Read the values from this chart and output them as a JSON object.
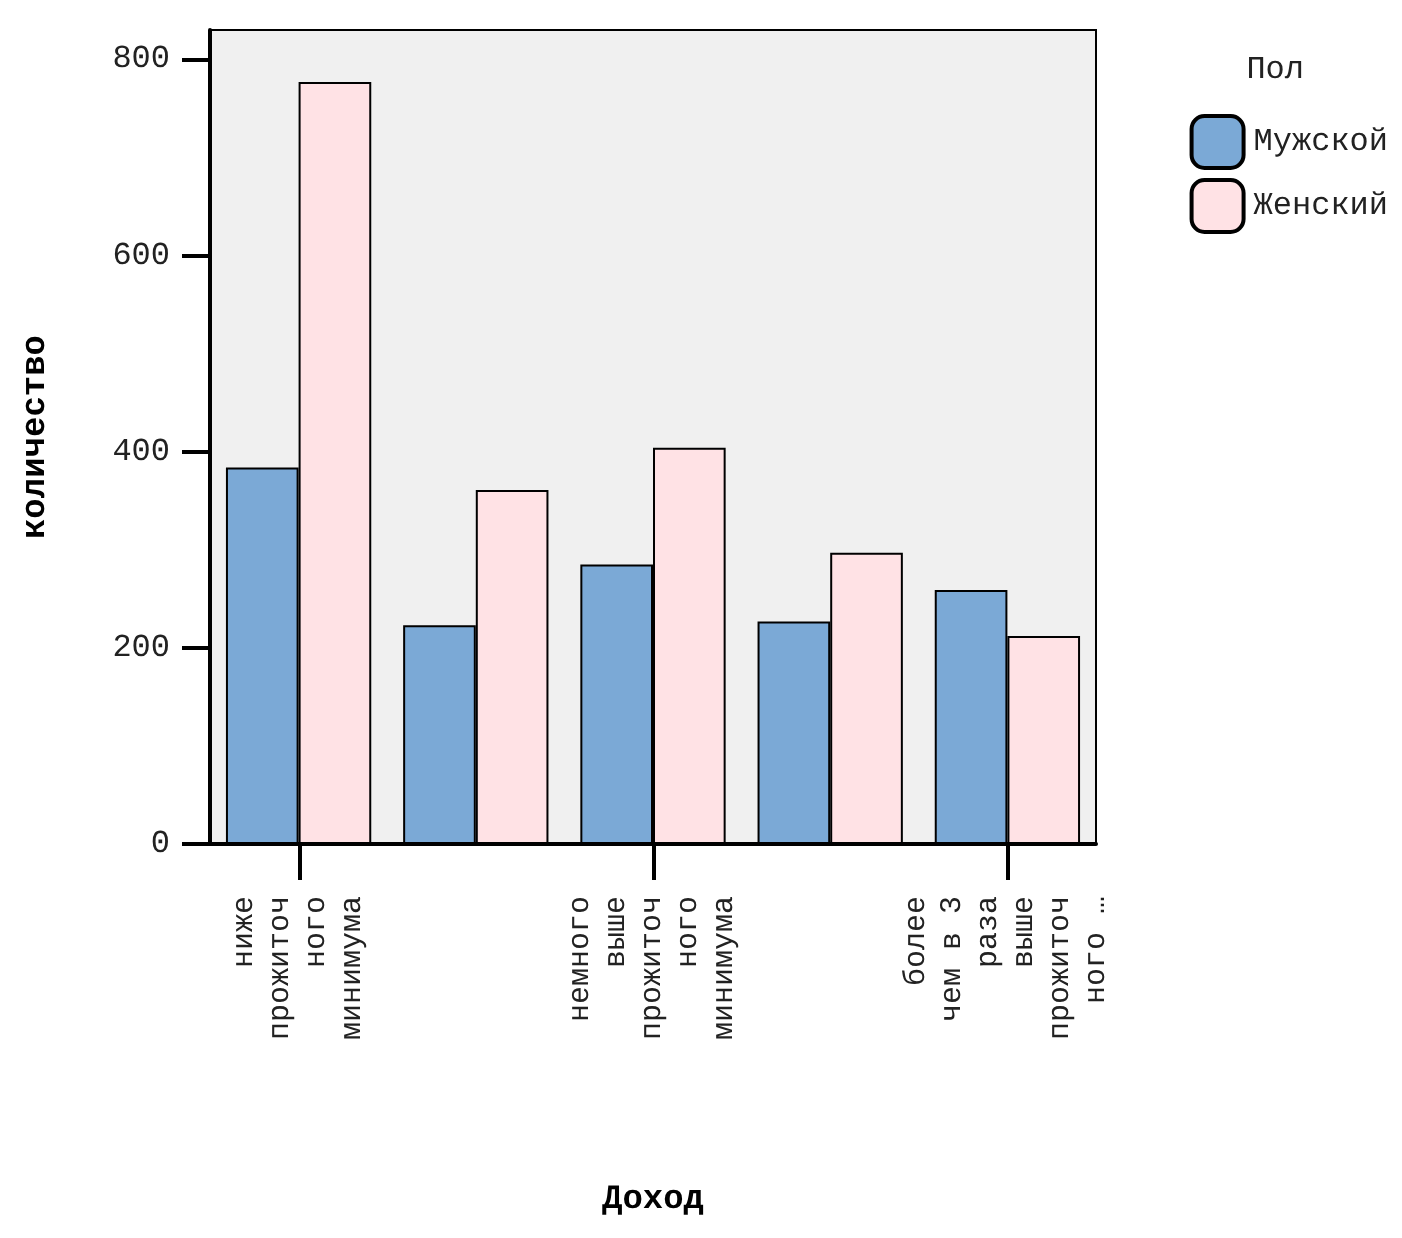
{
  "chart_data": {
    "type": "bar",
    "xlabel": "Доход",
    "ylabel": "количество",
    "legend_title": "Пол",
    "categories": [
      "ниже\nпрожиточ\nного\nминимума",
      null,
      "немного\nвыше\nпрожиточ\nного\nминимума",
      null,
      "более\nчем в 3\nраза\nвыше\nпрожиточ\nного …"
    ],
    "series": [
      {
        "name": "Мужской",
        "color": "#7ba9d6",
        "values": [
          384,
          223,
          285,
          227,
          259
        ]
      },
      {
        "name": "Женский",
        "color": "#ffe2e5",
        "values": [
          777,
          361,
          404,
          297,
          212
        ]
      }
    ],
    "ylim": [
      0,
      830
    ],
    "yticks": [
      0,
      200,
      400,
      600,
      800
    ],
    "grid": false,
    "legend": "right"
  }
}
